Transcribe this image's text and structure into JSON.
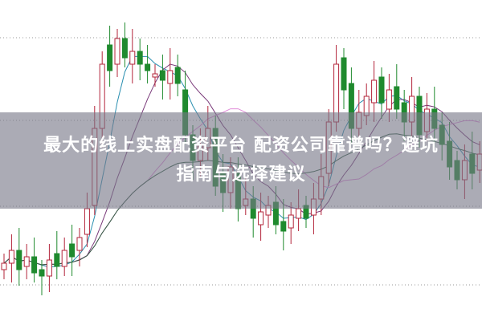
{
  "banner": {
    "line1": "最大的线上实盘配资平台 配资公司靠谱吗？避坑",
    "line2": "指南与选择建议"
  },
  "chart_data": {
    "type": "candlestick",
    "grid": true,
    "colors": {
      "up": "#b3243a",
      "down": "#1f8a2e",
      "ma5": "#2a8fb0",
      "ma10": "#7a3a7a",
      "ma20": "#e08ad8",
      "ma60": "#2f5a3f"
    },
    "closes": [
      18,
      22,
      16,
      20,
      15,
      14,
      19,
      17,
      22,
      20,
      26,
      35,
      60,
      80,
      78,
      88,
      82,
      84,
      80,
      78,
      77,
      75,
      78,
      74,
      58,
      50,
      55,
      60,
      42,
      40,
      48,
      35,
      38,
      32,
      34,
      36,
      30,
      28,
      33,
      35,
      32,
      38,
      45,
      62,
      80,
      72,
      60,
      65,
      70,
      75,
      68,
      72,
      66,
      62,
      70,
      58,
      66,
      60,
      55,
      48,
      44,
      50,
      46,
      52
    ],
    "opens": [
      16,
      18,
      22,
      17,
      20,
      16,
      14,
      21,
      17,
      24,
      22,
      27,
      36,
      60,
      86,
      80,
      88,
      80,
      84,
      80,
      76,
      78,
      74,
      79,
      72,
      58,
      50,
      54,
      60,
      46,
      40,
      46,
      36,
      38,
      30,
      33,
      37,
      31,
      29,
      32,
      36,
      33,
      38,
      46,
      62,
      82,
      74,
      60,
      64,
      68,
      76,
      66,
      73,
      68,
      62,
      70,
      59,
      66,
      61,
      56,
      50,
      44,
      52,
      47
    ]
  }
}
